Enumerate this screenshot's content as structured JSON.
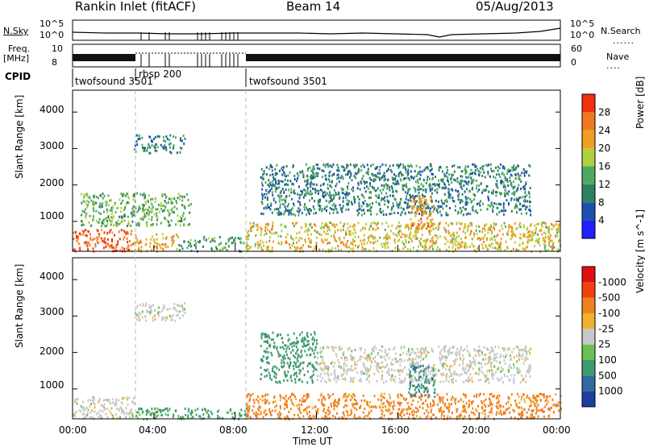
{
  "header": {
    "radar_title": "Rankin Inlet (fitACF)",
    "beam": "Beam 14",
    "date": "05/Aug/2013"
  },
  "panels": {
    "nsky_label": "N.Sky",
    "nsky_ticks": [
      "10^5",
      "10^0"
    ],
    "nsearch_label": "N.Search",
    "freq_label": "Freq.",
    "freq_unit": "[MHz]",
    "freq_ticks": [
      "10",
      "8"
    ],
    "nave_ticks": [
      "60",
      "0"
    ],
    "nave_label": "Nave",
    "cpid_label": "CPID",
    "cpid_segments": [
      {
        "name": "twofsound 3501",
        "start_h": 0,
        "end_h": 8.6
      },
      {
        "name": "rbsp 200",
        "start_h": 3.0,
        "end_h": 8.6
      },
      {
        "name": "twofsound 3501",
        "start_h": 8.6,
        "end_h": 24
      }
    ]
  },
  "axes": {
    "ylabel": "Slant Range [km]",
    "xlabel": "Time UT",
    "yticks": [
      "1000",
      "2000",
      "3000",
      "4000"
    ],
    "xticks": [
      "00:00",
      "04:00",
      "08:00",
      "12:00",
      "16:00",
      "20:00",
      "00:00"
    ]
  },
  "chart_data": [
    {
      "type": "heatmap",
      "title": "",
      "xlabel": "Time UT",
      "ylabel": "Slant Range [km]",
      "xlim": [
        0,
        24
      ],
      "ylim": [
        180,
        4600
      ],
      "colorbar": {
        "label": "Power [dB]",
        "ticks": [
          "4",
          "8",
          "12",
          "16",
          "20",
          "24",
          "28"
        ],
        "levels": [
          0,
          4,
          8,
          12,
          16,
          20,
          24,
          28,
          32
        ],
        "colors": [
          "#1f1fff",
          "#1c4fb0",
          "#2f8060",
          "#4fa860",
          "#b0d040",
          "#f0a020",
          "#f07820",
          "#f03010"
        ]
      },
      "regions": [
        {
          "t0": 0.0,
          "t1": 3.0,
          "r0": 200,
          "r1": 800,
          "value": 28
        },
        {
          "t0": 3.0,
          "t1": 5.2,
          "r0": 200,
          "r1": 700,
          "value": 22
        },
        {
          "t0": 5.2,
          "t1": 8.6,
          "r0": 200,
          "r1": 600,
          "value": 12
        },
        {
          "t0": 3.0,
          "t1": 5.5,
          "r0": 2900,
          "r1": 3400,
          "value": 10
        },
        {
          "t0": 0.4,
          "t1": 5.8,
          "r0": 900,
          "r1": 1800,
          "value": 14
        },
        {
          "t0": 8.5,
          "t1": 24.0,
          "r0": 200,
          "r1": 1000,
          "value": 20
        },
        {
          "t0": 9.2,
          "t1": 22.5,
          "r0": 1200,
          "r1": 2600,
          "value": 10
        },
        {
          "t0": 16.5,
          "t1": 17.8,
          "r0": 800,
          "r1": 1700,
          "value": 24
        }
      ]
    },
    {
      "type": "heatmap",
      "title": "",
      "xlabel": "Time UT",
      "ylabel": "Slant Range [km]",
      "xlim": [
        0,
        24
      ],
      "ylim": [
        180,
        4600
      ],
      "colorbar": {
        "label": "Velocity [m s^-1]",
        "ticks": [
          "1000",
          "500",
          "100",
          "25",
          "-25",
          "-100",
          "-500",
          "-1000"
        ],
        "levels": [
          1200,
          1000,
          500,
          100,
          25,
          -25,
          -100,
          -500,
          -1000,
          -1200
        ],
        "colors": [
          "#1f3fa0",
          "#2f6aa0",
          "#3f9a70",
          "#6ac050",
          "#c8c8c8",
          "#f0b030",
          "#f08020",
          "#f04010",
          "#e01010"
        ]
      },
      "regions": [
        {
          "t0": 0.0,
          "t1": 3.0,
          "r0": 200,
          "r1": 800,
          "value": 0
        },
        {
          "t0": 3.0,
          "t1": 8.6,
          "r0": 200,
          "r1": 500,
          "value": 150
        },
        {
          "t0": 3.0,
          "t1": 5.5,
          "r0": 2900,
          "r1": 3400,
          "value": 0
        },
        {
          "t0": 9.2,
          "t1": 12.0,
          "r0": 1200,
          "r1": 2600,
          "value": 300
        },
        {
          "t0": 12.0,
          "t1": 22.5,
          "r0": 1200,
          "r1": 2200,
          "value": 0
        },
        {
          "t0": 8.5,
          "t1": 24.0,
          "r0": 200,
          "r1": 900,
          "value": -150
        },
        {
          "t0": 16.5,
          "t1": 17.8,
          "r0": 800,
          "r1": 1700,
          "value": 400
        }
      ]
    }
  ]
}
